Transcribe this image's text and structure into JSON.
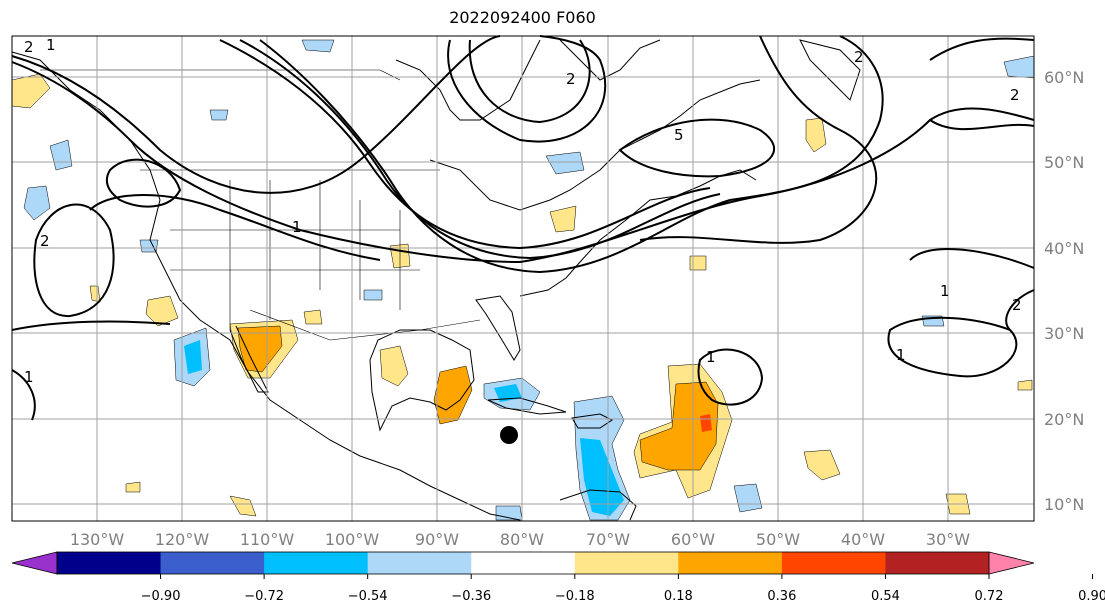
{
  "title": "2022092400 F060",
  "colors": {
    "ocean": "#ffffff",
    "grid": "#a0a0a0",
    "contour": "#000000"
  },
  "lon_labels": [
    "130°W",
    "120°W",
    "110°W",
    "100°W",
    "90°W",
    "80°W",
    "70°W",
    "60°W",
    "50°W",
    "40°W",
    "30°W"
  ],
  "lat_labels": [
    "60°N",
    "50°N",
    "40°N",
    "30°N",
    "20°N",
    "10°N"
  ],
  "contour_labels": [
    "2",
    "2",
    "1",
    "1",
    "2",
    "1",
    "5",
    "2",
    "2",
    "1",
    "2",
    "1",
    "1"
  ],
  "colorbar": {
    "ticks": [
      "−0.90",
      "−0.72",
      "−0.54",
      "−0.36",
      "−0.18",
      "0.18",
      "0.36",
      "0.54",
      "0.72",
      "0.90"
    ],
    "colors": [
      "#9932cc",
      "#00008b",
      "#3a5fcd",
      "#00bfff",
      "#add8f8",
      "#ffffff",
      "#ffe68a",
      "#ffa500",
      "#ff4500",
      "#b22222",
      "#ff82ab"
    ]
  }
}
